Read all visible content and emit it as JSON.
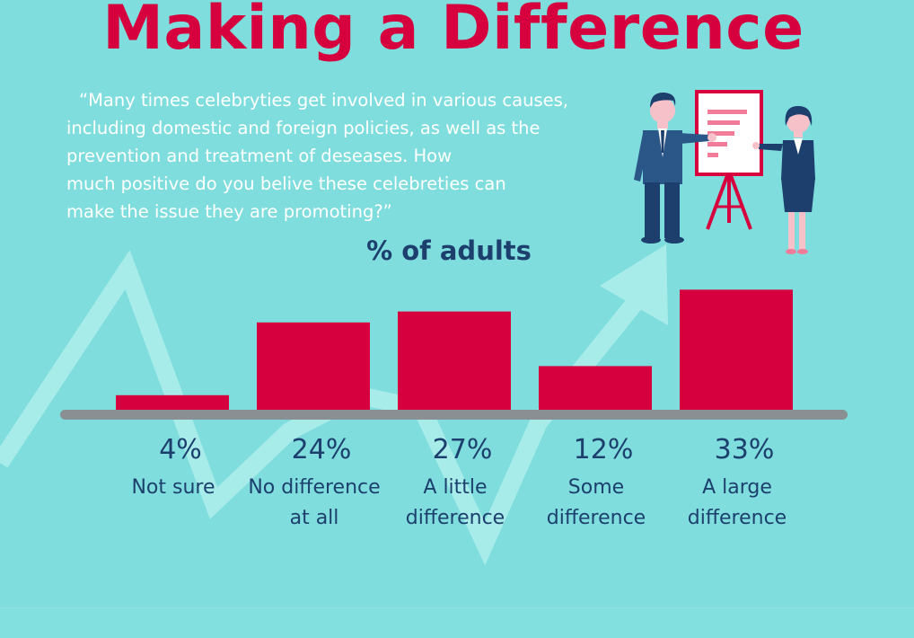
{
  "title": "Making a Difference",
  "quote_lines": [
    "“Many times celebryties get involved in various causes,",
    "including domestic and foreign policies, as well as the",
    "prevention and treatment of deseases. How",
    "much positive do you belive these celebreties can",
    "make the issue they are promoting?”"
  ],
  "colors": {
    "background": "#7fdedd",
    "title": "#d6003f",
    "bar": "#d6003f",
    "text_dark": "#1d3f6e",
    "baseline": "#8a8f93",
    "arrow": "#a8ecea"
  },
  "chart_data": {
    "type": "bar",
    "title": "% of adults",
    "categories": [
      [
        "Not sure"
      ],
      [
        "No difference",
        "at all"
      ],
      [
        "A little",
        "difference"
      ],
      [
        "Some",
        "difference"
      ],
      [
        "A large",
        "difference"
      ]
    ],
    "values": [
      4,
      24,
      27,
      12,
      33
    ],
    "value_labels": [
      "4%",
      "24%",
      "27%",
      "12%",
      "33%"
    ],
    "ylim": [
      0,
      40
    ],
    "grid": false
  }
}
